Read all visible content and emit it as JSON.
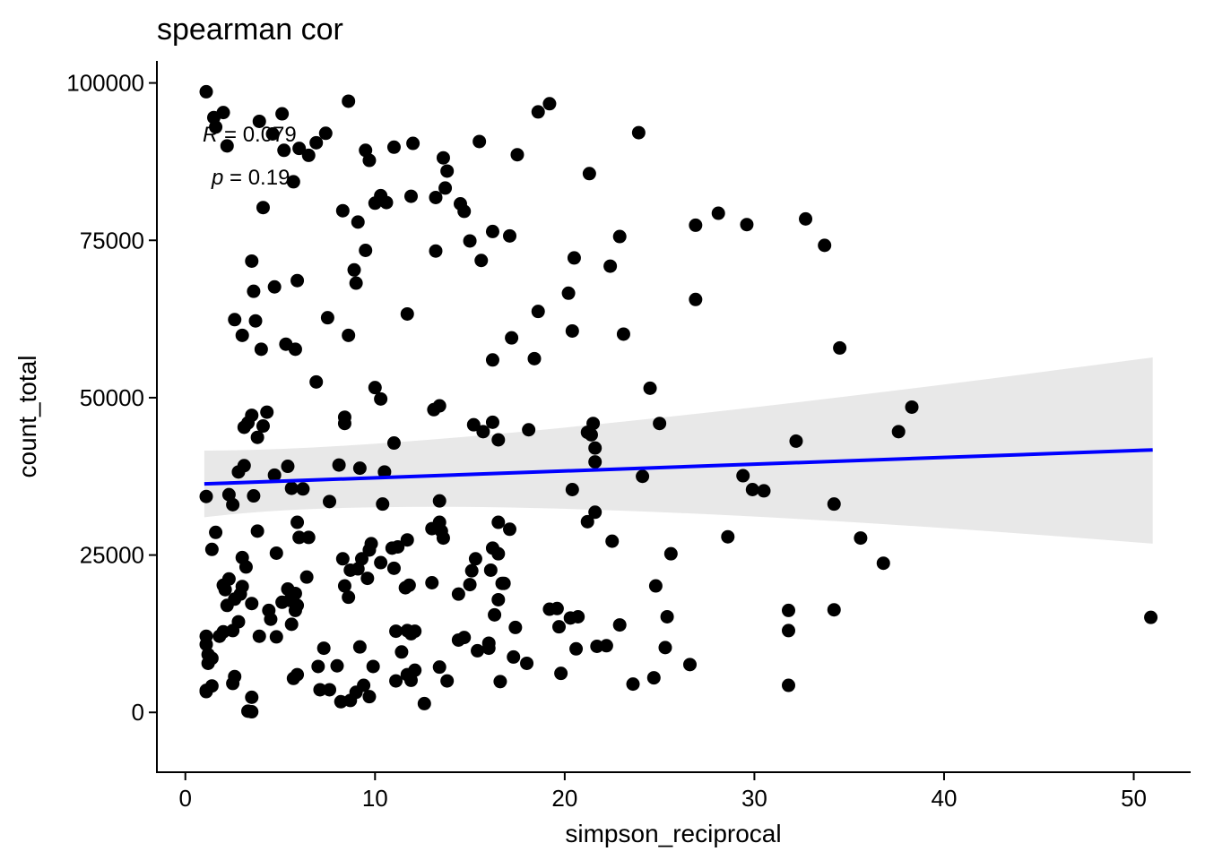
{
  "chart_data": {
    "type": "scatter",
    "title": "spearman cor",
    "xlabel": "simpson_reciprocal",
    "ylabel": "count_total",
    "xlim": [
      -1.5,
      53
    ],
    "ylim": [
      -9500,
      103500
    ],
    "x_ticks": [
      0,
      10,
      20,
      30,
      40,
      50
    ],
    "x_tick_labels": [
      "0",
      "10",
      "20",
      "30",
      "40",
      "50"
    ],
    "y_ticks": [
      0,
      25000,
      50000,
      75000,
      100000
    ],
    "y_tick_labels": [
      "0",
      "25000",
      "50000",
      "75000",
      "100000"
    ],
    "grid": false,
    "annotation": {
      "r_label": "R",
      "r_value": " = 0.079",
      "p_label": "p",
      "p_value": " = 0.19"
    },
    "colors": {
      "points": "#000000",
      "line": "#0000ff",
      "band": "#e6e6e6"
    },
    "regression": {
      "x": [
        1.0,
        51.0
      ],
      "y": [
        36300,
        41700
      ],
      "ci_upper": [
        41600,
        56400
      ],
      "ci_lower": [
        31000,
        26800
      ],
      "ci_mid_upper": 40300,
      "ci_mid_lower": 37000,
      "ci_mid_x": 14.0
    },
    "points": [
      [
        1.1,
        98600
      ],
      [
        1.5,
        94500
      ],
      [
        1.6,
        93000
      ],
      [
        2.0,
        95300
      ],
      [
        2.2,
        90000
      ],
      [
        3.9,
        93900
      ],
      [
        4.6,
        91900
      ],
      [
        5.1,
        95100
      ],
      [
        5.2,
        89300
      ],
      [
        5.7,
        84300
      ],
      [
        6.0,
        89600
      ],
      [
        6.5,
        88500
      ],
      [
        6.9,
        90500
      ],
      [
        7.4,
        92000
      ],
      [
        8.6,
        97100
      ],
      [
        9.5,
        89300
      ],
      [
        9.7,
        87700
      ],
      [
        11.0,
        89800
      ],
      [
        12.0,
        90400
      ],
      [
        13.6,
        88100
      ],
      [
        13.8,
        86000
      ],
      [
        13.7,
        83300
      ],
      [
        13.2,
        81800
      ],
      [
        14.5,
        80800
      ],
      [
        14.7,
        79600
      ],
      [
        15.5,
        90700
      ],
      [
        17.5,
        88600
      ],
      [
        18.6,
        95400
      ],
      [
        19.2,
        96700
      ],
      [
        21.3,
        85600
      ],
      [
        23.9,
        92100
      ],
      [
        10.3,
        82100
      ],
      [
        10.0,
        80900
      ],
      [
        10.6,
        81000
      ],
      [
        11.9,
        82000
      ],
      [
        8.3,
        79700
      ],
      [
        9.1,
        77900
      ],
      [
        4.1,
        80200
      ],
      [
        3.5,
        71700
      ],
      [
        3.6,
        66900
      ],
      [
        4.7,
        67600
      ],
      [
        5.9,
        68600
      ],
      [
        8.9,
        70300
      ],
      [
        9.0,
        68200
      ],
      [
        9.5,
        73400
      ],
      [
        13.2,
        73300
      ],
      [
        15.0,
        74900
      ],
      [
        15.6,
        71800
      ],
      [
        16.2,
        76400
      ],
      [
        17.1,
        75700
      ],
      [
        20.5,
        72200
      ],
      [
        22.4,
        70900
      ],
      [
        22.9,
        75600
      ],
      [
        26.9,
        77400
      ],
      [
        28.1,
        79300
      ],
      [
        29.6,
        77500
      ],
      [
        32.7,
        78400
      ],
      [
        33.7,
        74200
      ],
      [
        2.6,
        62400
      ],
      [
        3.7,
        62200
      ],
      [
        3.0,
        59900
      ],
      [
        4.0,
        57700
      ],
      [
        5.3,
        58500
      ],
      [
        5.8,
        57700
      ],
      [
        7.5,
        62700
      ],
      [
        8.6,
        59900
      ],
      [
        11.7,
        63300
      ],
      [
        16.2,
        56000
      ],
      [
        17.2,
        59500
      ],
      [
        18.4,
        56200
      ],
      [
        18.6,
        63700
      ],
      [
        20.2,
        66600
      ],
      [
        20.4,
        60600
      ],
      [
        23.1,
        60100
      ],
      [
        26.9,
        65600
      ],
      [
        34.5,
        57900
      ],
      [
        6.9,
        52500
      ],
      [
        10.0,
        51600
      ],
      [
        10.3,
        49800
      ],
      [
        11.0,
        42800
      ],
      [
        13.1,
        48100
      ],
      [
        13.4,
        48700
      ],
      [
        15.2,
        45700
      ],
      [
        15.7,
        44600
      ],
      [
        16.2,
        46100
      ],
      [
        16.5,
        43300
      ],
      [
        18.1,
        44900
      ],
      [
        21.2,
        44500
      ],
      [
        21.5,
        45900
      ],
      [
        21.4,
        44100
      ],
      [
        24.5,
        51500
      ],
      [
        25.0,
        45900
      ],
      [
        3.1,
        45300
      ],
      [
        3.3,
        46000
      ],
      [
        3.5,
        47200
      ],
      [
        3.8,
        43700
      ],
      [
        4.1,
        45500
      ],
      [
        4.3,
        47700
      ],
      [
        8.4,
        46900
      ],
      [
        8.4,
        45900
      ],
      [
        1.1,
        34300
      ],
      [
        2.3,
        34600
      ],
      [
        2.5,
        33000
      ],
      [
        2.8,
        38200
      ],
      [
        3.1,
        39200
      ],
      [
        3.6,
        34400
      ],
      [
        4.7,
        37700
      ],
      [
        5.4,
        39100
      ],
      [
        5.6,
        35600
      ],
      [
        6.2,
        35500
      ],
      [
        7.6,
        33500
      ],
      [
        8.1,
        39300
      ],
      [
        9.2,
        38800
      ],
      [
        10.5,
        38200
      ],
      [
        10.4,
        33100
      ],
      [
        13.4,
        33600
      ],
      [
        20.4,
        35400
      ],
      [
        21.6,
        42000
      ],
      [
        21.6,
        39800
      ],
      [
        24.1,
        37500
      ],
      [
        29.4,
        37600
      ],
      [
        29.9,
        35400
      ],
      [
        30.5,
        35200
      ],
      [
        32.2,
        43100
      ],
      [
        34.2,
        33100
      ],
      [
        37.6,
        44600
      ],
      [
        38.3,
        48500
      ],
      [
        1.6,
        28600
      ],
      [
        1.4,
        25900
      ],
      [
        3.0,
        24600
      ],
      [
        3.2,
        23100
      ],
      [
        3.8,
        28800
      ],
      [
        4.8,
        25300
      ],
      [
        5.9,
        30200
      ],
      [
        6.0,
        27800
      ],
      [
        6.5,
        27800
      ],
      [
        8.3,
        24400
      ],
      [
        8.7,
        22600
      ],
      [
        9.1,
        22800
      ],
      [
        9.3,
        24400
      ],
      [
        9.8,
        26800
      ],
      [
        9.7,
        25800
      ],
      [
        10.3,
        23800
      ],
      [
        10.9,
        26100
      ],
      [
        11.2,
        26300
      ],
      [
        11.7,
        27400
      ],
      [
        11.0,
        22900
      ],
      [
        13.0,
        29200
      ],
      [
        13.4,
        30200
      ],
      [
        13.5,
        28800
      ],
      [
        13.6,
        27700
      ],
      [
        15.3,
        24400
      ],
      [
        15.1,
        22500
      ],
      [
        16.1,
        22600
      ],
      [
        16.2,
        26100
      ],
      [
        16.5,
        25200
      ],
      [
        16.5,
        30200
      ],
      [
        16.7,
        20500
      ],
      [
        17.1,
        29100
      ],
      [
        21.2,
        30300
      ],
      [
        21.6,
        31800
      ],
      [
        22.5,
        27200
      ],
      [
        25.6,
        25200
      ],
      [
        28.6,
        27900
      ],
      [
        35.6,
        27700
      ],
      [
        36.8,
        23700
      ],
      [
        2.1,
        19500
      ],
      [
        2.0,
        20200
      ],
      [
        2.3,
        21200
      ],
      [
        2.2,
        17000
      ],
      [
        2.5,
        13000
      ],
      [
        2.6,
        18000
      ],
      [
        2.9,
        18800
      ],
      [
        3.0,
        20000
      ],
      [
        3.5,
        17300
      ],
      [
        3.9,
        12100
      ],
      [
        4.4,
        16200
      ],
      [
        4.5,
        14800
      ],
      [
        4.8,
        12000
      ],
      [
        5.1,
        17500
      ],
      [
        5.4,
        19600
      ],
      [
        5.5,
        17800
      ],
      [
        5.6,
        14000
      ],
      [
        5.8,
        16200
      ],
      [
        5.9,
        17000
      ],
      [
        5.8,
        18900
      ],
      [
        6.4,
        21500
      ],
      [
        8.4,
        20100
      ],
      [
        8.6,
        18300
      ],
      [
        9.6,
        21300
      ],
      [
        11.1,
        12900
      ],
      [
        11.8,
        20200
      ],
      [
        11.6,
        19800
      ],
      [
        11.7,
        13000
      ],
      [
        11.9,
        12500
      ],
      [
        13.0,
        20600
      ],
      [
        14.4,
        18800
      ],
      [
        15.0,
        20300
      ],
      [
        16.3,
        15500
      ],
      [
        16.5,
        17900
      ],
      [
        16.8,
        20500
      ],
      [
        17.4,
        13500
      ],
      [
        19.2,
        16400
      ],
      [
        19.6,
        16500
      ],
      [
        19.7,
        13600
      ],
      [
        20.3,
        15000
      ],
      [
        20.7,
        15200
      ],
      [
        22.9,
        13900
      ],
      [
        24.8,
        20100
      ],
      [
        25.4,
        15200
      ],
      [
        31.8,
        16200
      ],
      [
        31.8,
        13000
      ],
      [
        34.2,
        16300
      ],
      [
        50.9,
        15100
      ],
      [
        1.1,
        12100
      ],
      [
        1.1,
        10800
      ],
      [
        1.2,
        9200
      ],
      [
        1.2,
        7800
      ],
      [
        1.4,
        8600
      ],
      [
        1.8,
        12100
      ],
      [
        2.0,
        12800
      ],
      [
        2.5,
        4600
      ],
      [
        2.6,
        5700
      ],
      [
        3.5,
        2400
      ],
      [
        3.3,
        200
      ],
      [
        3.5,
        100
      ],
      [
        5.7,
        5400
      ],
      [
        5.9,
        6000
      ],
      [
        7.0,
        7300
      ],
      [
        7.1,
        3600
      ],
      [
        7.6,
        3600
      ],
      [
        8.0,
        7400
      ],
      [
        8.2,
        1700
      ],
      [
        8.7,
        1900
      ],
      [
        9.0,
        3200
      ],
      [
        9.2,
        10400
      ],
      [
        9.4,
        4300
      ],
      [
        9.7,
        2500
      ],
      [
        9.9,
        7300
      ],
      [
        11.1,
        5000
      ],
      [
        11.4,
        9600
      ],
      [
        11.7,
        6000
      ],
      [
        11.9,
        5100
      ],
      [
        12.1,
        6700
      ],
      [
        12.6,
        1400
      ],
      [
        13.4,
        7200
      ],
      [
        13.8,
        5000
      ],
      [
        14.4,
        11500
      ],
      [
        14.7,
        11900
      ],
      [
        15.4,
        9800
      ],
      [
        16.0,
        11000
      ],
      [
        16.0,
        10200
      ],
      [
        16.6,
        4900
      ],
      [
        17.3,
        8800
      ],
      [
        18.0,
        7800
      ],
      [
        19.8,
        6200
      ],
      [
        20.6,
        10100
      ],
      [
        21.7,
        10500
      ],
      [
        22.2,
        10600
      ],
      [
        23.6,
        4500
      ],
      [
        24.7,
        5500
      ],
      [
        25.3,
        10300
      ],
      [
        26.6,
        7600
      ],
      [
        31.8,
        4300
      ],
      [
        1.1,
        3500
      ],
      [
        1.1,
        3300
      ],
      [
        1.4,
        4200
      ],
      [
        2.8,
        14400
      ],
      [
        12.1,
        12900
      ],
      [
        7.3,
        10200
      ]
    ]
  }
}
